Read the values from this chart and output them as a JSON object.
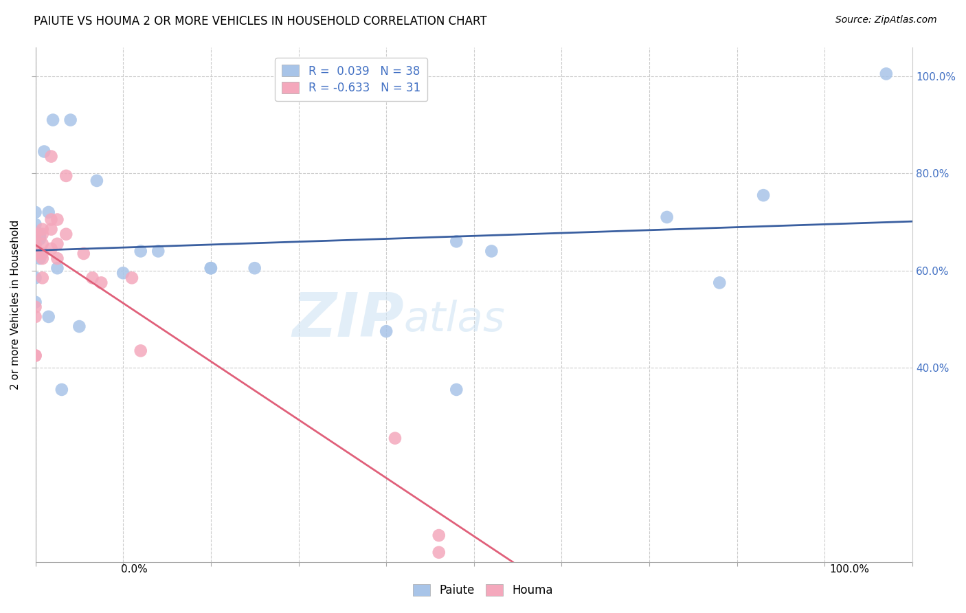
{
  "title": "PAIUTE VS HOUMA 2 OR MORE VEHICLES IN HOUSEHOLD CORRELATION CHART",
  "source": "Source: ZipAtlas.com",
  "ylabel": "2 or more Vehicles in Household",
  "paiute_color": "#a8c4e8",
  "houma_color": "#f4a8bc",
  "paiute_line_color": "#3a5fa0",
  "houma_line_color": "#e0607a",
  "watermark_zip": "ZIP",
  "watermark_atlas": "atlas",
  "paiute_R": 0.039,
  "paiute_N": 38,
  "houma_R": -0.633,
  "houma_N": 31,
  "legend_r1": "R =  0.039   N = 38",
  "legend_r2": "R = -0.633   N = 31",
  "paiute_x": [
    0.02,
    0.04,
    0.0,
    0.01,
    0.0,
    0.0,
    0.015,
    0.005,
    0.005,
    0.005,
    0.0,
    0.0,
    0.005,
    0.0,
    0.0,
    0.0,
    0.025,
    0.07,
    0.12,
    0.14,
    0.1,
    0.25,
    0.4,
    0.48,
    0.48,
    0.72,
    0.78,
    0.83,
    0.97,
    0.52,
    0.0,
    0.0,
    0.0,
    0.015,
    0.03,
    0.05,
    0.2,
    0.2
  ],
  "paiute_y": [
    0.91,
    0.91,
    0.695,
    0.845,
    0.72,
    0.68,
    0.72,
    0.67,
    0.675,
    0.665,
    0.655,
    0.645,
    0.625,
    0.635,
    0.585,
    0.535,
    0.605,
    0.785,
    0.64,
    0.64,
    0.595,
    0.605,
    0.475,
    0.66,
    0.355,
    0.71,
    0.575,
    0.755,
    1.005,
    0.64,
    0.675,
    0.665,
    0.655,
    0.505,
    0.355,
    0.485,
    0.605,
    0.605
  ],
  "houma_x": [
    0.0,
    0.0,
    0.0,
    0.0,
    0.0,
    0.0,
    0.0,
    0.0,
    0.008,
    0.008,
    0.008,
    0.008,
    0.008,
    0.008,
    0.018,
    0.018,
    0.018,
    0.018,
    0.025,
    0.025,
    0.025,
    0.035,
    0.035,
    0.055,
    0.065,
    0.075,
    0.11,
    0.12,
    0.41,
    0.46,
    0.46
  ],
  "houma_y": [
    0.425,
    0.425,
    0.675,
    0.655,
    0.645,
    0.635,
    0.525,
    0.505,
    0.685,
    0.675,
    0.655,
    0.635,
    0.625,
    0.585,
    0.835,
    0.705,
    0.685,
    0.645,
    0.705,
    0.655,
    0.625,
    0.795,
    0.675,
    0.635,
    0.585,
    0.575,
    0.585,
    0.435,
    0.255,
    0.02,
    0.055
  ],
  "ytick_vals": [
    0.4,
    0.6,
    0.8,
    1.0
  ],
  "ytick_labels": [
    "40.0%",
    "60.0%",
    "80.0%",
    "100.0%"
  ],
  "xtick_vals": [
    0.0,
    0.1,
    0.2,
    0.3,
    0.4,
    0.5,
    0.6,
    0.7,
    0.8,
    0.9,
    1.0
  ],
  "xlim": [
    0.0,
    1.0
  ],
  "ylim": [
    0.0,
    1.06
  ],
  "marker_size": 180
}
